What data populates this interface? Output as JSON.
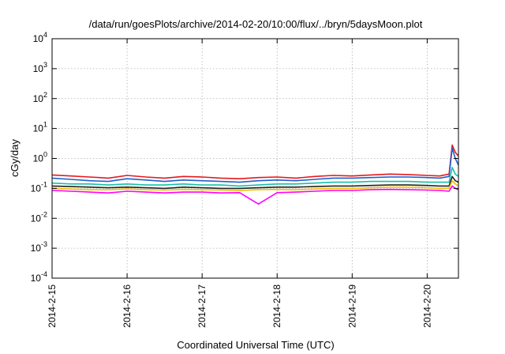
{
  "chart_data": {
    "type": "line",
    "title": "/data/run/goesPlots/archive/2014-02-20/10:00/flux/../bryn/5daysMoon.plot",
    "xlabel": "Coordinated Universal Time (UTC)",
    "ylabel": "cGy/day",
    "yscale": "log",
    "ylim": [
      0.0001,
      10000
    ],
    "y_ticks": [
      {
        "base": "10",
        "exp": "4",
        "value": 10000
      },
      {
        "base": "10",
        "exp": "3",
        "value": 1000
      },
      {
        "base": "10",
        "exp": "2",
        "value": 100
      },
      {
        "base": "10",
        "exp": "1",
        "value": 10
      },
      {
        "base": "10",
        "exp": "0",
        "value": 1
      },
      {
        "base": "10",
        "exp": "-1",
        "value": 0.1
      },
      {
        "base": "10",
        "exp": "-2",
        "value": 0.01
      },
      {
        "base": "10",
        "exp": "-3",
        "value": 0.001
      },
      {
        "base": "10",
        "exp": "-4",
        "value": 0.0001
      }
    ],
    "xlim": [
      "2014-02-15T00:00",
      "2014-02-20T10:00"
    ],
    "x_ticks": [
      {
        "label": "2014-2-15",
        "date": "2014-02-15"
      },
      {
        "label": "2014-2-16",
        "date": "2014-02-16"
      },
      {
        "label": "2014-2-17",
        "date": "2014-02-17"
      },
      {
        "label": "2014-2-18",
        "date": "2014-02-18"
      },
      {
        "label": "2014-2-19",
        "date": "2014-02-19"
      },
      {
        "label": "2014-2-20",
        "date": "2014-02-20"
      }
    ],
    "grid": true,
    "legend": "none",
    "x": [
      "2014-02-15T00:00",
      "2014-02-15T06:00",
      "2014-02-15T12:00",
      "2014-02-15T18:00",
      "2014-02-16T00:00",
      "2014-02-16T06:00",
      "2014-02-16T12:00",
      "2014-02-16T18:00",
      "2014-02-17T00:00",
      "2014-02-17T06:00",
      "2014-02-17T12:00",
      "2014-02-17T18:00",
      "2014-02-18T00:00",
      "2014-02-18T06:00",
      "2014-02-18T12:00",
      "2014-02-18T18:00",
      "2014-02-19T00:00",
      "2014-02-19T06:00",
      "2014-02-19T12:00",
      "2014-02-19T18:00",
      "2014-02-20T00:00",
      "2014-02-20T04:00",
      "2014-02-20T07:00",
      "2014-02-20T08:00",
      "2014-02-20T09:00",
      "2014-02-20T10:00"
    ],
    "series": [
      {
        "color": "#e41a1c",
        "values": [
          0.28,
          0.26,
          0.24,
          0.22,
          0.27,
          0.24,
          0.22,
          0.25,
          0.24,
          0.22,
          0.21,
          0.23,
          0.24,
          0.22,
          0.25,
          0.27,
          0.26,
          0.28,
          0.3,
          0.29,
          0.27,
          0.26,
          0.3,
          2.8,
          1.6,
          1.2
        ]
      },
      {
        "color": "#1f5fd0",
        "values": [
          0.22,
          0.2,
          0.18,
          0.17,
          0.21,
          0.19,
          0.17,
          0.19,
          0.18,
          0.17,
          0.16,
          0.18,
          0.19,
          0.18,
          0.2,
          0.22,
          0.22,
          0.23,
          0.24,
          0.24,
          0.23,
          0.22,
          0.25,
          2.2,
          1.0,
          0.6
        ]
      },
      {
        "color": "#19c0a8",
        "values": [
          0.15,
          0.14,
          0.14,
          0.13,
          0.14,
          0.13,
          0.13,
          0.14,
          0.13,
          0.13,
          0.12,
          0.13,
          0.14,
          0.14,
          0.15,
          0.16,
          0.16,
          0.17,
          0.17,
          0.17,
          0.16,
          0.16,
          0.16,
          0.5,
          0.3,
          0.25
        ]
      },
      {
        "color": "#222222",
        "values": [
          0.12,
          0.115,
          0.11,
          0.105,
          0.11,
          0.105,
          0.1,
          0.11,
          0.105,
          0.1,
          0.1,
          0.105,
          0.11,
          0.11,
          0.115,
          0.12,
          0.12,
          0.125,
          0.13,
          0.13,
          0.125,
          0.12,
          0.12,
          0.25,
          0.18,
          0.16
        ]
      },
      {
        "color": "#f0c000",
        "values": [
          0.1,
          0.095,
          0.09,
          0.09,
          0.095,
          0.09,
          0.088,
          0.092,
          0.09,
          0.088,
          0.086,
          0.09,
          0.092,
          0.09,
          0.095,
          0.1,
          0.1,
          0.105,
          0.11,
          0.11,
          0.105,
          0.1,
          0.1,
          0.18,
          0.14,
          0.12
        ]
      },
      {
        "color": "#ff00ff",
        "values": [
          0.085,
          0.08,
          0.075,
          0.07,
          0.08,
          0.075,
          0.07,
          0.075,
          0.075,
          0.07,
          0.072,
          0.03,
          0.072,
          0.075,
          0.08,
          0.085,
          0.085,
          0.09,
          0.092,
          0.09,
          0.088,
          0.085,
          0.08,
          0.12,
          0.1,
          0.09
        ]
      }
    ]
  }
}
